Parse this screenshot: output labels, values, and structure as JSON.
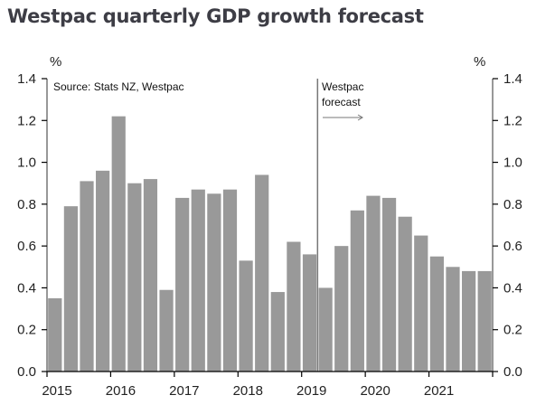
{
  "title": "Westpac quarterly GDP growth forecast",
  "chart_data": {
    "type": "bar",
    "title": "Westpac quarterly GDP growth forecast",
    "xlabel": "",
    "ylabel": "%",
    "ylabel_right": "%",
    "ylim": [
      0,
      1.4
    ],
    "yticks": [
      "0.0",
      "0.2",
      "0.4",
      "0.6",
      "0.8",
      "1.0",
      "1.2",
      "1.4"
    ],
    "xtick_labels": [
      "2015",
      "2016",
      "2017",
      "2018",
      "2019",
      "2020",
      "2021"
    ],
    "grid": false,
    "bar_color": "#999999",
    "source": "Source: Stats NZ, Westpac",
    "forecast_label": [
      "Westpac",
      "forecast"
    ],
    "forecast_start_index": 17,
    "categories": [
      "2015Q1",
      "2015Q2",
      "2015Q3",
      "2015Q4",
      "2016Q1",
      "2016Q2",
      "2016Q3",
      "2016Q4",
      "2017Q1",
      "2017Q2",
      "2017Q3",
      "2017Q4",
      "2018Q1",
      "2018Q2",
      "2018Q3",
      "2018Q4",
      "2019Q1",
      "2019Q2",
      "2019Q3",
      "2019Q4",
      "2020Q1",
      "2020Q2",
      "2020Q3",
      "2020Q4",
      "2021Q1",
      "2021Q2",
      "2021Q3",
      "2021Q4"
    ],
    "values": [
      0.35,
      0.79,
      0.91,
      0.96,
      1.22,
      0.9,
      0.92,
      0.39,
      0.83,
      0.87,
      0.85,
      0.87,
      0.53,
      0.94,
      0.38,
      0.62,
      0.56,
      0.4,
      0.6,
      0.77,
      0.84,
      0.83,
      0.74,
      0.65,
      0.55,
      0.5,
      0.48,
      0.48
    ]
  }
}
